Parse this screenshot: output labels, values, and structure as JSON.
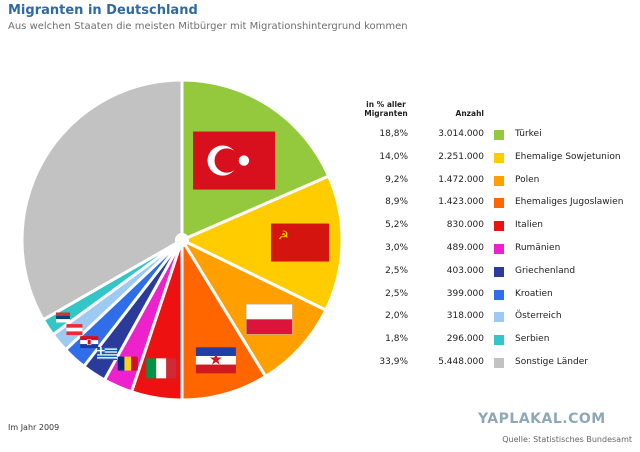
{
  "header": {
    "title": "Migranten in Deutschland",
    "subtitle": "Aus welchen Staaten die meisten Mitbürger mit Migrationshintergrund kommen"
  },
  "table": {
    "col_pct": "in % aller Migranten",
    "col_count": "Anzahl"
  },
  "footer": {
    "note": "Im Jahr 2009",
    "watermark": "YAPLAKAL.COM",
    "source": "Quelle: Statistisches Bundesamt"
  },
  "chart_data": {
    "type": "pie",
    "categories": [
      "Türkei",
      "Ehemalige Sowjetunion",
      "Polen",
      "Ehemaliges Jugoslawien",
      "Italien",
      "Rumänien",
      "Griechenland",
      "Kroatien",
      "Österreich",
      "Serbien",
      "Sonstige Länder"
    ],
    "values": [
      18.8,
      14.0,
      9.2,
      8.9,
      5.2,
      3.0,
      2.5,
      2.5,
      2.0,
      1.8,
      33.9
    ],
    "value_labels": [
      "18,8%",
      "14,0%",
      "9,2%",
      "8,9%",
      "5,2%",
      "3,0%",
      "2,5%",
      "2,5%",
      "2,0%",
      "1,8%",
      "33,9%"
    ],
    "counts": [
      "3.014.000",
      "2.251.000",
      "1.472.000",
      "1.423.000",
      "830.000",
      "489.000",
      "403.000",
      "399.000",
      "318.000",
      "296.000",
      "5.448.000"
    ],
    "colors": [
      "#94c93d",
      "#ffcc00",
      "#ff9f00",
      "#ff6600",
      "#ee1111",
      "#ee22cc",
      "#2a3b9c",
      "#2f6ee8",
      "#9dcaf2",
      "#33c6c6",
      "#c2c2c2"
    ],
    "flags": [
      "flag-turkey",
      "flag-soviet-union",
      "flag-poland",
      "flag-yugoslavia",
      "flag-italy",
      "flag-romania",
      "flag-greece",
      "flag-croatia",
      "flag-austria",
      "flag-serbia",
      ""
    ],
    "legend": "right"
  }
}
